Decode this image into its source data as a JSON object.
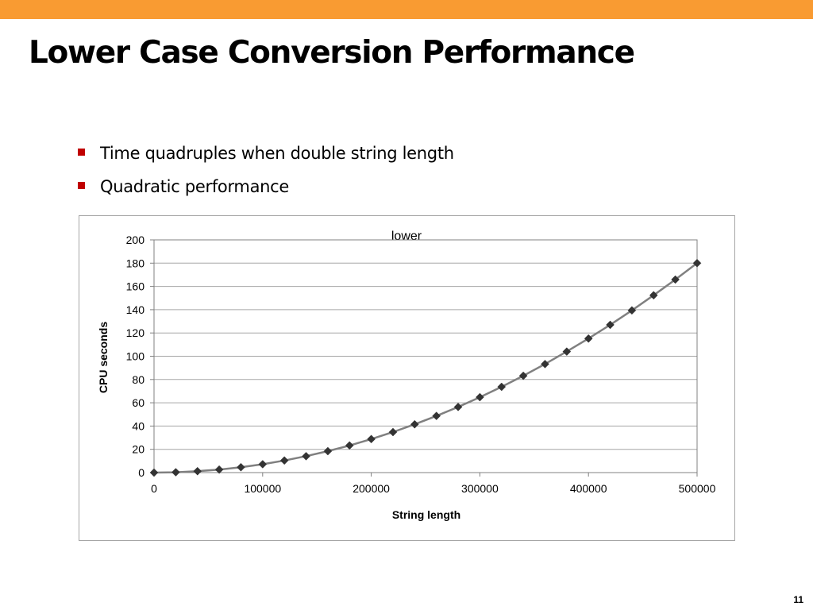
{
  "slide": {
    "title": "Lower Case Conversion Performance",
    "bullets": [
      "Time quadruples when double string length",
      "Quadratic performance"
    ],
    "page_number": "11",
    "accent_color": "#f99b32",
    "bullet_color": "#c00000"
  },
  "chart_data": {
    "type": "line",
    "title": "lower",
    "xlabel": "String length",
    "ylabel": "CPU seconds",
    "xlim": [
      0,
      500000
    ],
    "ylim": [
      0,
      200
    ],
    "xticks": [
      0,
      100000,
      200000,
      300000,
      400000,
      500000
    ],
    "yticks": [
      0,
      20,
      40,
      60,
      80,
      100,
      120,
      140,
      160,
      180,
      200
    ],
    "grid": "horizontal",
    "legend": "none",
    "marker": "diamond",
    "line_color": "#808080",
    "marker_color": "#333333",
    "series": [
      {
        "x": [
          0,
          20000,
          40000,
          60000,
          80000,
          100000,
          120000,
          140000,
          160000,
          180000,
          200000,
          220000,
          240000,
          260000,
          280000,
          300000,
          320000,
          340000,
          360000,
          380000,
          400000,
          420000,
          440000,
          460000,
          480000,
          500000
        ],
        "values": [
          0,
          0.3,
          1.2,
          2.6,
          4.6,
          7.2,
          10.4,
          14.1,
          18.4,
          23.3,
          28.8,
          34.8,
          41.5,
          48.7,
          56.4,
          64.8,
          73.7,
          83.2,
          93.3,
          104.0,
          115.2,
          127.0,
          139.4,
          152.4,
          165.9,
          180
        ]
      }
    ]
  }
}
